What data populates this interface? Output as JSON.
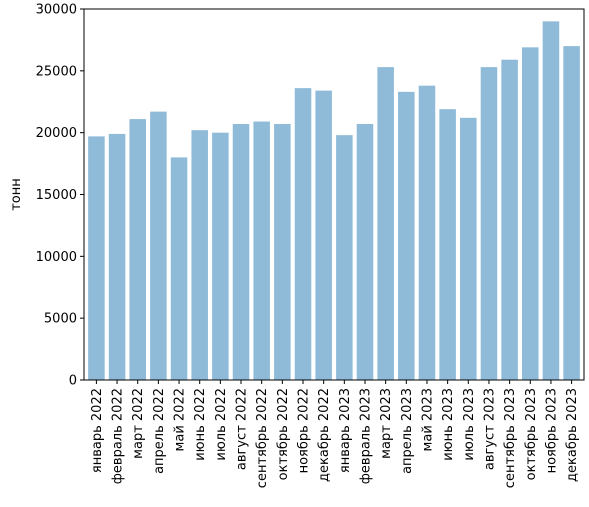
{
  "chart_data": {
    "type": "bar",
    "title": "",
    "xlabel": "",
    "ylabel": "тонн",
    "ylim": [
      0,
      30000
    ],
    "yticks": [
      0,
      5000,
      10000,
      15000,
      20000,
      25000,
      30000
    ],
    "grid": false,
    "bar_color": "#1f77b4",
    "bar_alpha": 0.5,
    "categories": [
      "январь 2022",
      "февраль 2022",
      "март 2022",
      "апрель 2022",
      "май 2022",
      "июнь 2022",
      "июль 2022",
      "август 2022",
      "сентябрь 2022",
      "октябрь 2022",
      "ноябрь 2022",
      "декабрь 2022",
      "январь 2023",
      "февраль 2023",
      "март 2023",
      "апрель 2023",
      "май 2023",
      "июнь 2023",
      "июль 2023",
      "август 2023",
      "сентябрь 2023",
      "октябрь 2023",
      "ноябрь 2023",
      "декабрь 2023"
    ],
    "values": [
      19700,
      19900,
      21100,
      21700,
      18000,
      20200,
      20000,
      20700,
      20900,
      20700,
      23600,
      23400,
      19800,
      20700,
      25300,
      23300,
      23800,
      21900,
      21200,
      25300,
      25900,
      26900,
      29000,
      27000
    ]
  }
}
